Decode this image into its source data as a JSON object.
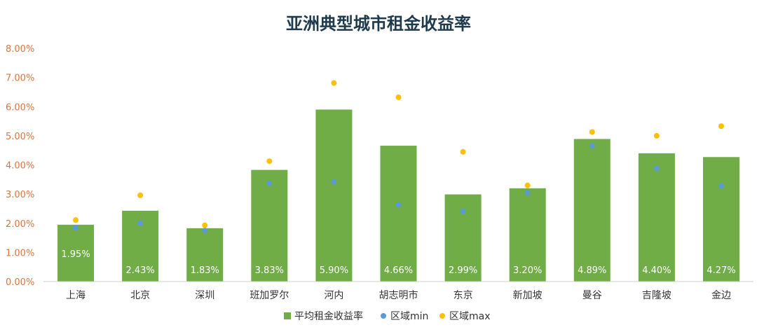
{
  "chart_data": {
    "type": "bar",
    "title": "亚洲典型城市租金收益率",
    "categories": [
      "上海",
      "北京",
      "深圳",
      "班加罗尔",
      "河内",
      "胡志明市",
      "东京",
      "新加坡",
      "曼谷",
      "吉隆坡",
      "金边"
    ],
    "series": [
      {
        "name": "平均租金收益率",
        "kind": "bar",
        "color": "#70ad47",
        "values": [
          1.95,
          2.43,
          1.83,
          3.83,
          5.9,
          4.66,
          2.99,
          3.2,
          4.89,
          4.4,
          4.27
        ],
        "labels": [
          "1.95%",
          "2.43%",
          "1.83%",
          "3.83%",
          "5.90%",
          "4.66%",
          "2.99%",
          "3.20%",
          "4.89%",
          "4.40%",
          "4.27%"
        ]
      },
      {
        "name": "区域min",
        "kind": "marker",
        "color": "#5b9bd5",
        "values": [
          1.85,
          2.0,
          1.75,
          3.37,
          3.42,
          2.63,
          2.41,
          3.05,
          4.66,
          3.88,
          3.28
        ]
      },
      {
        "name": "区域max",
        "kind": "marker",
        "color": "#ffc000",
        "values": [
          2.11,
          2.96,
          1.93,
          4.13,
          6.81,
          6.32,
          4.45,
          3.3,
          5.13,
          5.0,
          5.33
        ]
      }
    ],
    "yticks": [
      "0.00%",
      "1.00%",
      "2.00%",
      "3.00%",
      "4.00%",
      "5.00%",
      "6.00%",
      "7.00%",
      "8.00%"
    ],
    "ylim": [
      0,
      8
    ],
    "grid": false,
    "legend_position": "bottom"
  }
}
